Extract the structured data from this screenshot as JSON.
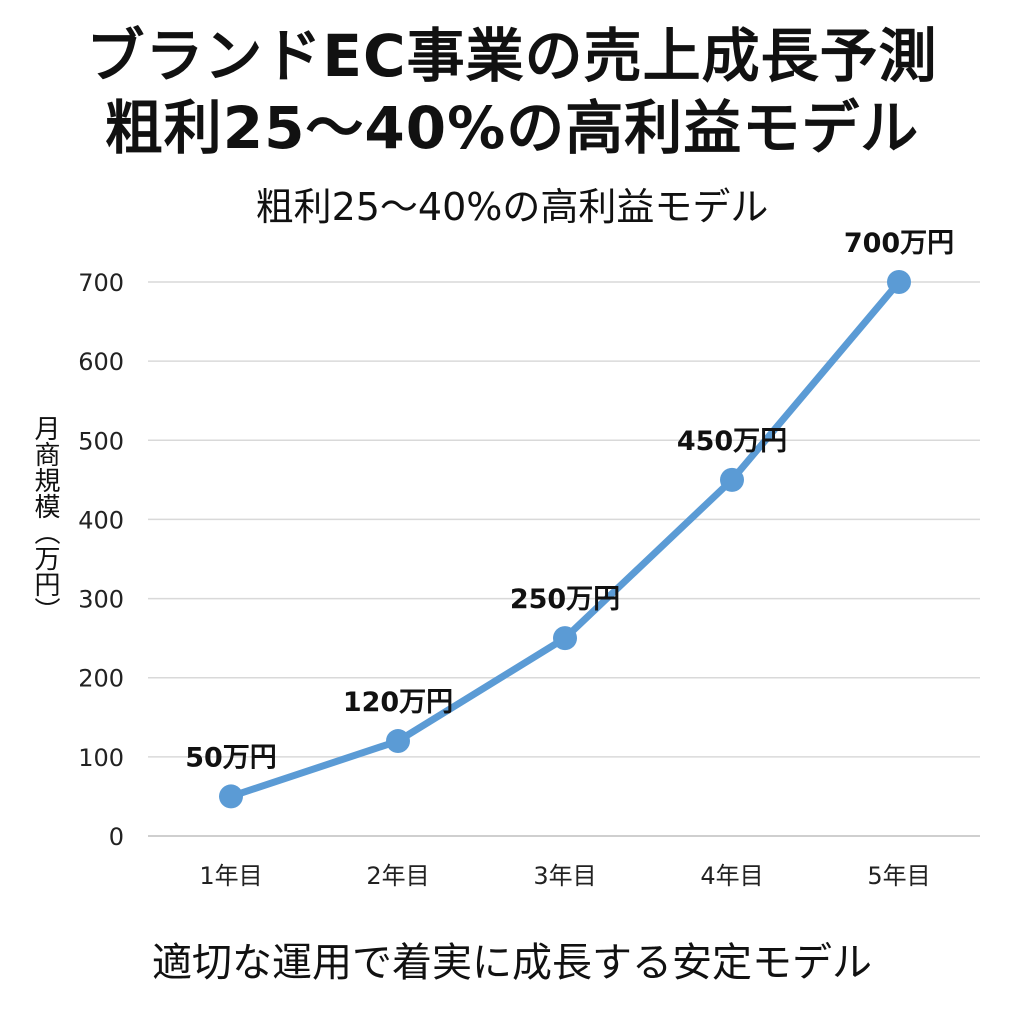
{
  "chart_data": {
    "type": "line",
    "title_lines": [
      "ブランドEC事業の売上成長予測",
      "粗利25〜40%の高利益モデル"
    ],
    "subtitle": "粗利25〜40%の高利益モデル",
    "ylabel": "月商規模（万円）",
    "footer": "適切な運用で着実に成長する安定モデル",
    "categories": [
      "1年目",
      "2年目",
      "3年目",
      "4年目",
      "5年目"
    ],
    "values": [
      50,
      120,
      250,
      450,
      700
    ],
    "data_labels": [
      "50万円",
      "120万円",
      "250万円",
      "450万円",
      "700万円"
    ],
    "yticks": [
      "0",
      "100",
      "200",
      "300",
      "400",
      "500",
      "600",
      "700"
    ],
    "ylim": [
      0,
      700
    ],
    "grid": true,
    "line_color": "#5b9bd5"
  }
}
